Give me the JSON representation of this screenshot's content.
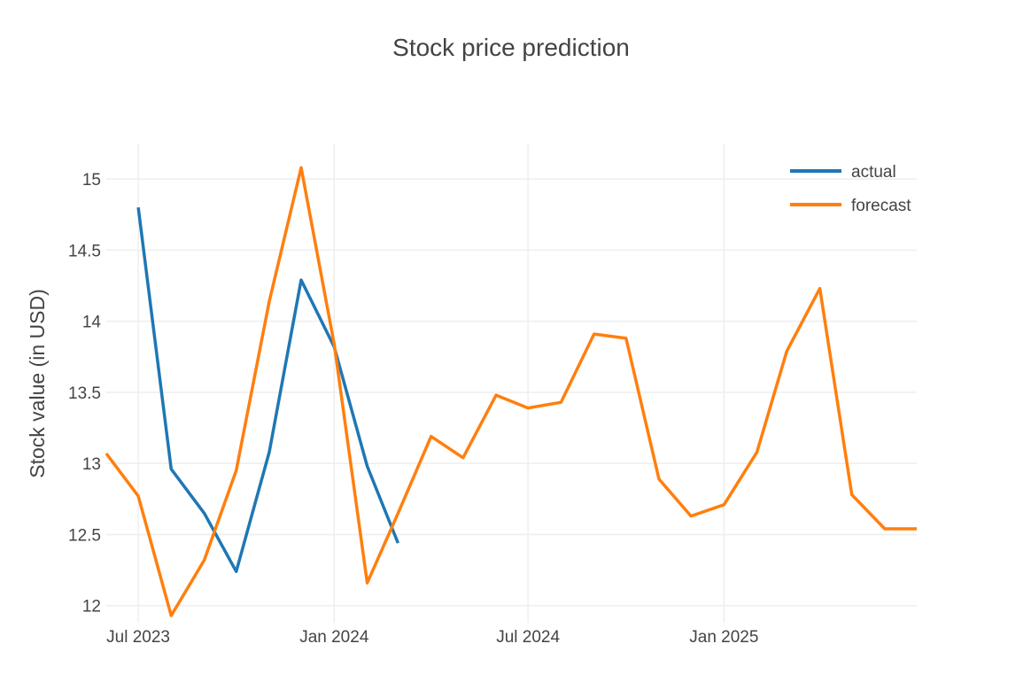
{
  "chart_data": {
    "type": "line",
    "title": "Stock price prediction",
    "xlabel": "",
    "ylabel": "Stock value (in USD)",
    "x_ticks": [
      {
        "date": "2023-07-01",
        "label": "Jul 2023"
      },
      {
        "date": "2024-01-01",
        "label": "Jan 2024"
      },
      {
        "date": "2024-07-01",
        "label": "Jul 2024"
      },
      {
        "date": "2025-01-01",
        "label": "Jan 2025"
      }
    ],
    "y_ticks": [
      12,
      12.5,
      13,
      13.5,
      14,
      14.5,
      15
    ],
    "xlim": [
      "2023-06-01",
      "2025-07-01"
    ],
    "ylim": [
      11.88,
      15.25
    ],
    "grid": true,
    "legend_position": "top-right",
    "series": [
      {
        "name": "actual",
        "color": "#1f77b4",
        "x": [
          "2023-07-01",
          "2023-08-01",
          "2023-09-01",
          "2023-10-01",
          "2023-11-01",
          "2023-12-01",
          "2024-01-01",
          "2024-02-01",
          "2024-03-01"
        ],
        "values": [
          14.8,
          12.96,
          12.65,
          12.24,
          13.08,
          14.29,
          13.82,
          12.98,
          12.44
        ]
      },
      {
        "name": "forecast",
        "color": "#ff7f0e",
        "x": [
          "2023-06-01",
          "2023-07-01",
          "2023-08-01",
          "2023-09-01",
          "2023-10-01",
          "2023-11-01",
          "2023-12-01",
          "2024-01-01",
          "2024-02-01",
          "2024-03-01",
          "2024-04-01",
          "2024-05-01",
          "2024-06-01",
          "2024-07-01",
          "2024-08-01",
          "2024-09-01",
          "2024-10-01",
          "2024-11-01",
          "2024-12-01",
          "2025-01-01",
          "2025-02-01",
          "2025-03-01",
          "2025-04-01",
          "2025-05-01",
          "2025-06-01",
          "2025-07-01"
        ],
        "values": [
          13.07,
          12.77,
          11.93,
          12.32,
          12.95,
          14.14,
          15.08,
          13.84,
          12.16,
          12.65,
          13.19,
          13.04,
          13.48,
          13.39,
          13.43,
          13.91,
          13.88,
          12.89,
          12.63,
          12.71,
          13.08,
          13.79,
          14.23,
          12.78,
          12.54,
          12.54
        ]
      }
    ]
  }
}
